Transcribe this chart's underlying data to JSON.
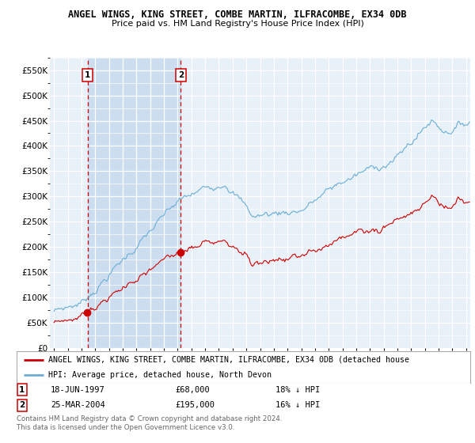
{
  "title": "ANGEL WINGS, KING STREET, COMBE MARTIN, ILFRACOMBE, EX34 0DB",
  "subtitle": "Price paid vs. HM Land Registry's House Price Index (HPI)",
  "ylim": [
    0,
    575000
  ],
  "yticks": [
    0,
    50000,
    100000,
    150000,
    200000,
    250000,
    300000,
    350000,
    400000,
    450000,
    500000,
    550000
  ],
  "ytick_labels": [
    "£0",
    "£50K",
    "£100K",
    "£150K",
    "£200K",
    "£250K",
    "£300K",
    "£350K",
    "£400K",
    "£450K",
    "£500K",
    "£550K"
  ],
  "hpi_color": "#6baed6",
  "price_color": "#cc0000",
  "marker_color": "#cc0000",
  "plot_bg": "#e8f0f8",
  "shade_color": "#ccddf0",
  "sale1_date": 1997.46,
  "sale1_price": 68000,
  "sale1_label": "1",
  "sale2_date": 2004.23,
  "sale2_price": 195000,
  "sale2_label": "2",
  "legend_line1": "ANGEL WINGS, KING STREET, COMBE MARTIN, ILFRACOMBE, EX34 0DB (detached house",
  "legend_line2": "HPI: Average price, detached house, North Devon",
  "annotation1_date": "18-JUN-1997",
  "annotation1_price": "£68,000",
  "annotation1_hpi": "18% ↓ HPI",
  "annotation2_date": "25-MAR-2004",
  "annotation2_price": "£195,000",
  "annotation2_hpi": "16% ↓ HPI",
  "footer": "Contains HM Land Registry data © Crown copyright and database right 2024.\nThis data is licensed under the Open Government Licence v3.0.",
  "title_fontsize": 8.5,
  "subtitle_fontsize": 8.0,
  "xstart": 1995.0,
  "xend": 2025.3
}
